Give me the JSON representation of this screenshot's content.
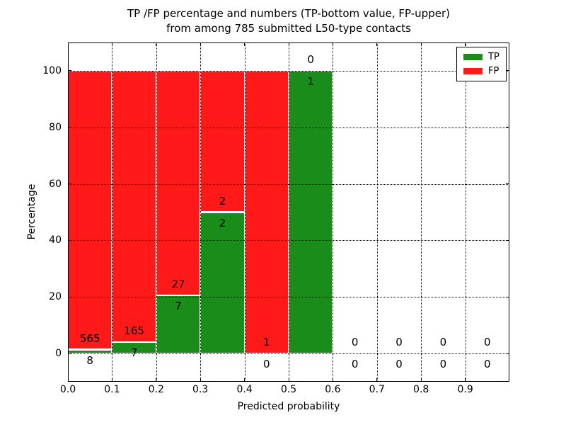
{
  "chart_data": {
    "type": "bar",
    "stacked": true,
    "title": "TP /FP percentage and numbers (TP-bottom value, FP-upper)",
    "subtitle": "from among 785 submitted L50-type contacts",
    "xlabel": "Predicted probability",
    "ylabel": "Percentage",
    "xlim": [
      0.0,
      1.0
    ],
    "ylim": [
      -10,
      110
    ],
    "xticks": [
      "0.0",
      "0.1",
      "0.2",
      "0.3",
      "0.4",
      "0.5",
      "0.6",
      "0.7",
      "0.8",
      "0.9"
    ],
    "yticks": [
      "0",
      "20",
      "40",
      "60",
      "80",
      "100"
    ],
    "grid": true,
    "grid_style": "dotted",
    "legend": {
      "position": "upper right",
      "entries": [
        {
          "label": "TP",
          "color": "#1a8c1a"
        },
        {
          "label": "FP",
          "color": "#ff1919"
        }
      ]
    },
    "bins": [
      {
        "x0": 0.0,
        "x1": 0.1,
        "tp": 8,
        "fp": 565,
        "tp_pct": 1.4,
        "fp_pct": 98.6
      },
      {
        "x0": 0.1,
        "x1": 0.2,
        "tp": 7,
        "fp": 165,
        "tp_pct": 4.07,
        "fp_pct": 95.93
      },
      {
        "x0": 0.2,
        "x1": 0.3,
        "tp": 7,
        "fp": 27,
        "tp_pct": 20.59,
        "fp_pct": 79.41
      },
      {
        "x0": 0.3,
        "x1": 0.4,
        "tp": 2,
        "fp": 2,
        "tp_pct": 50.0,
        "fp_pct": 50.0
      },
      {
        "x0": 0.4,
        "x1": 0.5,
        "tp": 0,
        "fp": 1,
        "tp_pct": 0.0,
        "fp_pct": 100.0
      },
      {
        "x0": 0.5,
        "x1": 0.6,
        "tp": 1,
        "fp": 0,
        "tp_pct": 100.0,
        "fp_pct": 0.0
      },
      {
        "x0": 0.6,
        "x1": 0.7,
        "tp": 0,
        "fp": 0,
        "tp_pct": 0.0,
        "fp_pct": 0.0
      },
      {
        "x0": 0.7,
        "x1": 0.8,
        "tp": 0,
        "fp": 0,
        "tp_pct": 0.0,
        "fp_pct": 0.0
      },
      {
        "x0": 0.8,
        "x1": 0.9,
        "tp": 0,
        "fp": 0,
        "tp_pct": 0.0,
        "fp_pct": 0.0
      },
      {
        "x0": 0.9,
        "x1": 1.0,
        "tp": 0,
        "fp": 0,
        "tp_pct": 0.0,
        "fp_pct": 0.0
      }
    ]
  }
}
